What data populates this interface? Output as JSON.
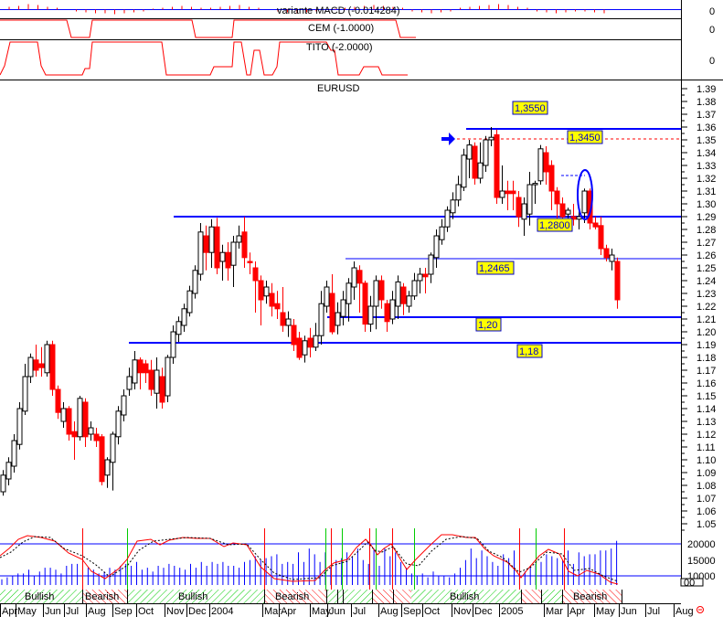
{
  "symbol": "EURUSD",
  "panels": {
    "macd": {
      "label": "variante MACD (-0.014284)",
      "axis_value": "0"
    },
    "cem": {
      "label": "CEM (-1.0000)",
      "axis_value": "0"
    },
    "tito": {
      "label": "TITO (-2.0000)",
      "axis_value": "0"
    }
  },
  "price_axis": {
    "ticks": [
      "1.39",
      "1.38",
      "1.37",
      "1.36",
      "1.35",
      "1.34",
      "1.33",
      "1.32",
      "1.31",
      "1.30",
      "1.29",
      "1.28",
      "1.27",
      "1.26",
      "1.25",
      "1.24",
      "1.23",
      "1.22",
      "1.21",
      "1.20",
      "1.19",
      "1.18",
      "1.17",
      "1.16",
      "1.15",
      "1.14",
      "1.13",
      "1.12",
      "1.11",
      "1.10",
      "1.09",
      "1.08",
      "1.07",
      "1.06",
      "1.05"
    ]
  },
  "levels": [
    {
      "label": "1,3550",
      "value": 1.355,
      "style": "solid-thick",
      "color": "#0000ff"
    },
    {
      "label": "1,3450",
      "value": 1.345,
      "style": "dashed",
      "color": "#ff0000"
    },
    {
      "label": "1,2800",
      "value": 1.28,
      "style": "solid-thick",
      "color": "#0000ff"
    },
    {
      "label": "1,2465",
      "value": 1.2465,
      "style": "solid-thin",
      "color": "#0000ff"
    },
    {
      "label": "1,20",
      "value": 1.2,
      "style": "solid-thick",
      "color": "#0000ff"
    },
    {
      "label": "1,18",
      "value": 1.18,
      "style": "solid-thick",
      "color": "#0000ff"
    }
  ],
  "volume_axis": {
    "ticks": [
      "20000",
      "15000",
      "10000"
    ],
    "unit_label": "00"
  },
  "regimes": [
    {
      "label": "Bullish",
      "type": "bullish"
    },
    {
      "label": "Bearish",
      "type": "bearish"
    },
    {
      "label": "Bullish",
      "type": "bullish"
    },
    {
      "label": "Bearish",
      "type": "bearish"
    },
    {
      "label": "Bullish",
      "type": "bullish"
    },
    {
      "label": "Bearish",
      "type": "bearish"
    }
  ],
  "months": [
    "Apr",
    "May",
    "Jun",
    "Jul",
    "Aug",
    "Sep",
    "Oct",
    "Nov",
    "Dec",
    "2004",
    "Mar",
    "Apr",
    "May",
    "Jun",
    "Jul",
    "Aug",
    "Sep",
    "Oct",
    "Nov",
    "Dec",
    "2005",
    "Mar",
    "Apr",
    "May",
    "Jun",
    "Jul",
    "Aug"
  ],
  "colors": {
    "up": "#ffffff",
    "down": "#ff0000",
    "level": "#0000ff",
    "signal_buy": "#00cc00",
    "signal_sell": "#ff0000",
    "volume": "#0000ff"
  },
  "chart_data": {
    "type": "candlestick",
    "title": "EURUSD",
    "xlabel": "",
    "ylabel": "",
    "ylim": [
      1.05,
      1.39
    ],
    "x_ticks": [
      "Apr",
      "May",
      "Jun",
      "Jul",
      "Aug",
      "Sep",
      "Oct",
      "Nov",
      "Dec",
      "2004",
      "Mar",
      "Apr",
      "May",
      "Jun",
      "Jul",
      "Aug",
      "Sep",
      "Oct",
      "Nov",
      "Dec",
      "2005",
      "Mar",
      "Apr",
      "May",
      "Jun",
      "Jul",
      "Aug"
    ],
    "horizontal_levels": [
      1.355,
      1.345,
      1.28,
      1.2465,
      1.2,
      1.18
    ],
    "annotations": [
      "1,3550",
      "1,3450",
      "1,2800",
      "1,2465",
      "1,20",
      "1,18",
      "blue arrow at 1.345",
      "blue ellipse around Apr 2005 candles"
    ],
    "series": [
      {
        "name": "EURUSD weekly close (approx.)",
        "x": [
          "Apr-03",
          "May-03",
          "Jun-03",
          "Jul-03",
          "Aug-03",
          "Sep-03",
          "Oct-03",
          "Nov-03",
          "Dec-03",
          "Jan-04",
          "Feb-04",
          "Mar-04",
          "Apr-04",
          "May-04",
          "Jun-04",
          "Jul-04",
          "Aug-04",
          "Sep-04",
          "Oct-04",
          "Nov-04",
          "Dec-04",
          "Jan-05",
          "Feb-05",
          "Mar-05",
          "Apr-05",
          "May-05"
        ],
        "values": [
          1.09,
          1.16,
          1.18,
          1.14,
          1.11,
          1.15,
          1.17,
          1.19,
          1.23,
          1.27,
          1.26,
          1.22,
          1.2,
          1.19,
          1.22,
          1.23,
          1.21,
          1.24,
          1.27,
          1.33,
          1.35,
          1.31,
          1.3,
          1.34,
          1.29,
          1.25
        ]
      },
      {
        "name": "Volume",
        "ylim": [
          8000,
          23000
        ]
      },
      {
        "name": "variante MACD",
        "last": -0.014284
      },
      {
        "name": "CEM",
        "last": -1.0
      },
      {
        "name": "TITO",
        "last": -2.0
      }
    ],
    "volume_ticks": [
      20000,
      15000,
      10000
    ],
    "legend": []
  }
}
